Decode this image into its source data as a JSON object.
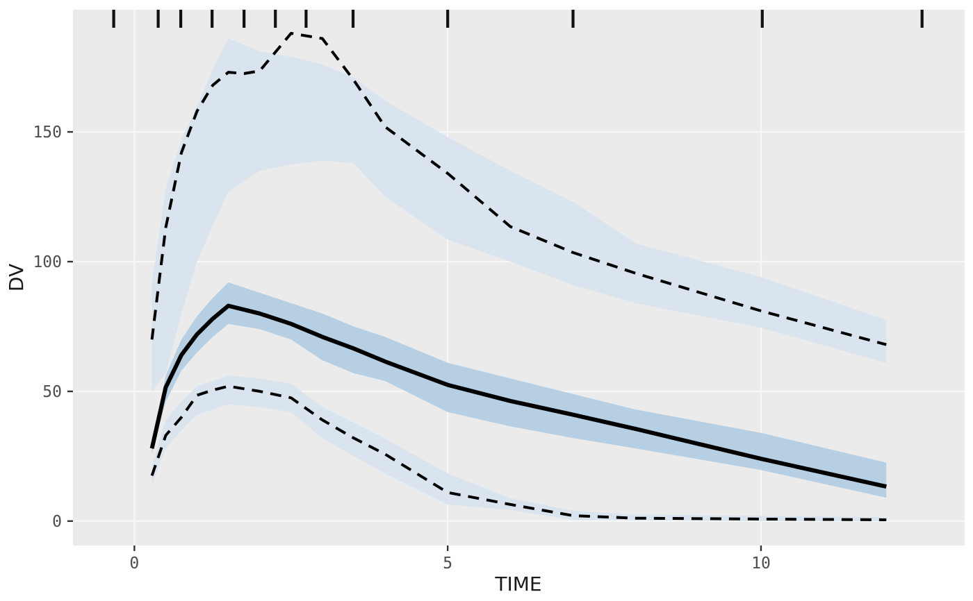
{
  "chart_data": {
    "type": "line",
    "description": "Visual predictive check: observed 5th/50th/95th percentile lines of DV vs TIME with simulated confidence interval ribbons and bin rug marks at top",
    "title": "",
    "xlabel": "TIME",
    "ylabel": "DV",
    "x_ticks": [
      0,
      5,
      10
    ],
    "y_ticks": [
      0,
      50,
      100,
      150
    ],
    "xlim": [
      -0.98,
      13.25
    ],
    "ylim": [
      -9.4,
      197.1
    ],
    "grid": "major gridlines only, white on gray panel",
    "legend": "none",
    "rug_times": [
      -0.33,
      0.38,
      0.74,
      1.24,
      1.75,
      2.25,
      2.74,
      3.49,
      5.0,
      7.0,
      10.02,
      12.57
    ],
    "x": [
      0.28,
      0.5,
      0.75,
      1,
      1.25,
      1.5,
      1.75,
      2,
      2.5,
      3,
      3.5,
      4,
      5,
      6,
      7,
      8,
      10,
      12
    ],
    "series": [
      {
        "name": "p95_observed",
        "style": "dashed",
        "values": [
          70,
          113,
          142,
          158,
          168,
          173,
          172.5,
          173.5,
          188,
          186,
          170,
          152,
          134,
          113.5,
          103.5,
          95.5,
          81,
          68
        ]
      },
      {
        "name": "median_observed",
        "style": "solid",
        "values": [
          28,
          51.5,
          64,
          72,
          78,
          83,
          81.5,
          80,
          76,
          71,
          66.5,
          61.5,
          52.5,
          46.3,
          41,
          35.5,
          24,
          13.3
        ]
      },
      {
        "name": "p5_observed",
        "style": "dashed",
        "values": [
          17.5,
          33,
          40,
          48.5,
          50.5,
          52,
          51,
          50,
          47.5,
          39,
          32,
          25.8,
          11,
          6.4,
          2.1,
          1.1,
          0.8,
          0.5
        ]
      }
    ],
    "ribbons": [
      {
        "name": "p95_ci",
        "color": "#D9E4EE",
        "upper": [
          92,
          128,
          147,
          160,
          174,
          186,
          183.5,
          181,
          179,
          176,
          171,
          162,
          148,
          135,
          123,
          107,
          94,
          77.5
        ],
        "lower": [
          50,
          57,
          80,
          100,
          114,
          127,
          131,
          135,
          137.5,
          139,
          138,
          125,
          108.5,
          100,
          91,
          84,
          74.5,
          61
        ]
      },
      {
        "name": "median_ci",
        "color": "#B7CFE3",
        "upper": [
          30,
          56,
          70,
          79,
          86,
          92,
          90,
          88,
          84,
          80,
          75,
          71,
          61,
          55,
          49,
          43,
          34,
          22.5
        ],
        "lower": [
          26,
          46,
          58,
          65,
          71,
          76,
          75,
          74,
          70,
          62,
          57,
          54,
          42,
          36.5,
          32,
          28,
          19.7,
          9
        ]
      },
      {
        "name": "p5_ci",
        "color": "#D9E4EE",
        "upper": [
          21,
          39,
          46,
          52,
          54,
          56,
          55.5,
          55,
          53,
          44,
          38,
          31.8,
          18.4,
          8.8,
          4,
          2.5,
          2,
          1.5
        ],
        "lower": [
          14,
          28,
          35,
          41,
          43,
          45,
          44.5,
          44,
          42,
          32,
          25,
          18.4,
          6.4,
          4.3,
          0.5,
          0.3,
          0,
          0
        ]
      }
    ],
    "colors": {
      "panel_bg": "#EBEBEB",
      "grid": "#F7F7F7",
      "line": "#000000",
      "ribbon_light": "#D9E4EE",
      "ribbon_dark": "#B7CFE3",
      "tick_text": "#4D4D4D",
      "axis_title": "#1A1A1A",
      "tick_mark": "#333333",
      "rug": "#111111"
    }
  }
}
